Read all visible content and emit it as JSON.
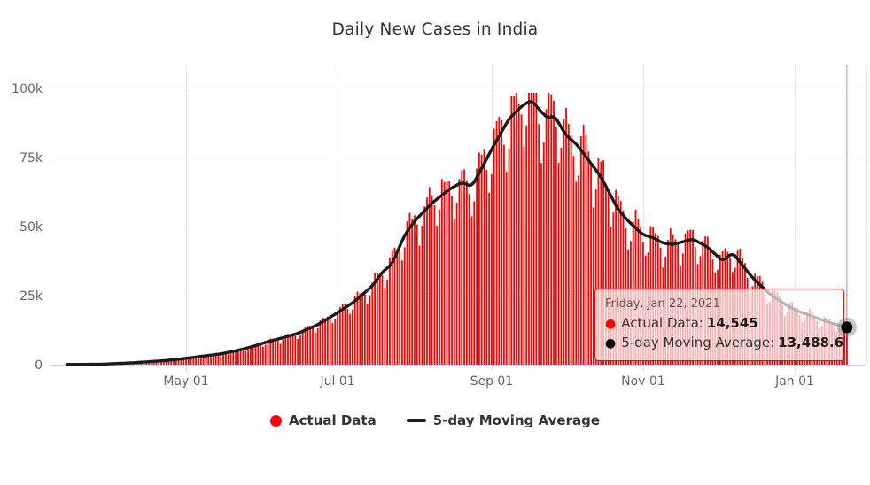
{
  "title": "Daily New Cases in India",
  "legend": {
    "items": [
      {
        "label": "Actual Data",
        "color": "#ff0000",
        "marker": "circle"
      },
      {
        "label": "5-day Moving Average",
        "color": "#1a1a1a",
        "marker": "line"
      }
    ]
  },
  "tooltip": {
    "date": "Friday, Jan 22, 2021",
    "rows": [
      {
        "bullet_color": "#ff0000",
        "label": "Actual Data:",
        "value": "14,545"
      },
      {
        "bullet_color": "#1a1a1a",
        "label": "5-day Moving Average:",
        "value": "13,488.6"
      }
    ]
  },
  "chart_data": {
    "type": "bar",
    "title": "Daily New Cases in India",
    "x_range": [
      "2020-03-14",
      "2021-01-22"
    ],
    "y_axis": {
      "min": 0,
      "max": 100000,
      "tick_values": [
        0,
        25000,
        50000,
        75000,
        100000
      ],
      "tick_labels": [
        "0",
        "25k",
        "50k",
        "75k",
        "100k"
      ],
      "grid": true
    },
    "x_ticks": [
      {
        "label": "May 01",
        "date": "2020-05-01"
      },
      {
        "label": "Jul 01",
        "date": "2020-07-01"
      },
      {
        "label": "Sep 01",
        "date": "2020-09-01"
      },
      {
        "label": "Nov 01",
        "date": "2020-11-01"
      },
      {
        "label": "Jan 01",
        "date": "2021-01-01"
      }
    ],
    "legend_position": "bottom",
    "series": [
      {
        "name": "Actual Data",
        "type": "column",
        "color": "#ff0000",
        "last_value": 14545
      },
      {
        "name": "5-day Moving Average",
        "type": "line",
        "color": "#1a1a1a",
        "last_value": 13488.6
      }
    ],
    "avg_anchor_points_k": [
      [
        0,
        0.08
      ],
      [
        7,
        0.1
      ],
      [
        14,
        0.15
      ],
      [
        18,
        0.35
      ],
      [
        25,
        0.6
      ],
      [
        32,
        1.0
      ],
      [
        40,
        1.5
      ],
      [
        48,
        2.3
      ],
      [
        55,
        3.1
      ],
      [
        62,
        3.9
      ],
      [
        69,
        5.2
      ],
      [
        75,
        6.6
      ],
      [
        79,
        7.8
      ],
      [
        86,
        9.5
      ],
      [
        93,
        11.3
      ],
      [
        100,
        14.0
      ],
      [
        104,
        16.0
      ],
      [
        109,
        18.8
      ],
      [
        116,
        23.0
      ],
      [
        123,
        28.5
      ],
      [
        127,
        33.5
      ],
      [
        131,
        36.5
      ],
      [
        136,
        47.0
      ],
      [
        140,
        52.0
      ],
      [
        147,
        58.5
      ],
      [
        154,
        63.5
      ],
      [
        159,
        66.0
      ],
      [
        163,
        64.5
      ],
      [
        167,
        71.0
      ],
      [
        171,
        78.0
      ],
      [
        178,
        89.0
      ],
      [
        183,
        93.5
      ],
      [
        187,
        95.8
      ],
      [
        191,
        91.5
      ],
      [
        194,
        89.0
      ],
      [
        196,
        90.5
      ],
      [
        201,
        83.0
      ],
      [
        205,
        80.0
      ],
      [
        208,
        76.5
      ],
      [
        215,
        68.0
      ],
      [
        222,
        56.0
      ],
      [
        226,
        52.0
      ],
      [
        229,
        49.5
      ],
      [
        232,
        47.0
      ],
      [
        236,
        46.0
      ],
      [
        240,
        44.0
      ],
      [
        244,
        43.5
      ],
      [
        248,
        44.5
      ],
      [
        252,
        45.5
      ],
      [
        258,
        42.5
      ],
      [
        264,
        37.5
      ],
      [
        268,
        40.5
      ],
      [
        276,
        31.5
      ],
      [
        283,
        25.5
      ],
      [
        288,
        22.5
      ],
      [
        293,
        19.8
      ],
      [
        300,
        17.5
      ],
      [
        307,
        15.2
      ],
      [
        314,
        13.4886
      ]
    ],
    "weekday_factors": [
      0.96,
      0.82,
      0.9,
      1.06,
      1.1,
      1.08,
      1.04
    ],
    "noise_seed": 11,
    "hover": {
      "date": "Friday, Jan 22, 2021",
      "actual": 14545,
      "average": 13488.6
    },
    "colors": {
      "bars": "#ff0000",
      "line": "#1a1a1a",
      "grid": "#e6e6e6",
      "axis": "#ccd6eb",
      "labels": "#666666",
      "title": "#333333",
      "crosshair": "#c0c0c0",
      "halo": "#808080"
    }
  }
}
